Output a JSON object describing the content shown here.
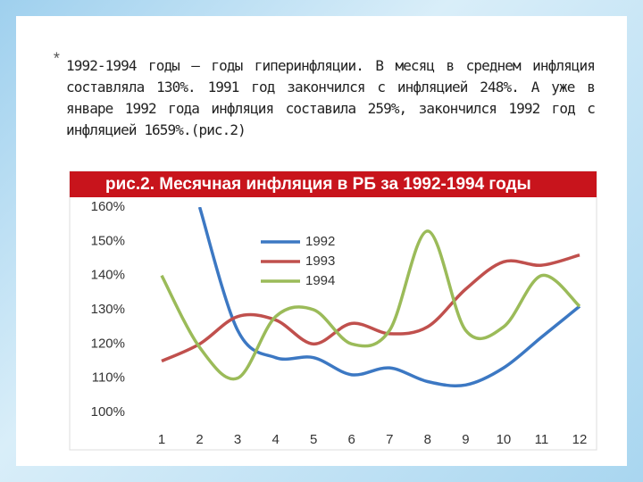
{
  "slide": {
    "bullet": "*",
    "text": "1992-1994 годы – годы гиперинфляции. В месяц в среднем инфляция составляла 130%. 1991 год закончился с инфляцией 248%. А уже в январе 1992 года инфляция составила 259%, закончился 1992 год с инфляцией 1659%.(рис.2)"
  },
  "chart_data": {
    "type": "line",
    "title": "рис.2. Месячная инфляция в РБ за 1992-1994 годы",
    "categories": [
      "1",
      "2",
      "3",
      "4",
      "5",
      "6",
      "7",
      "8",
      "9",
      "10",
      "11",
      "12"
    ],
    "series": [
      {
        "name": "1992",
        "color": "#3c78c3",
        "values": [
          null,
          160,
          124,
          116,
          116,
          111,
          113,
          109,
          108,
          113,
          122,
          131
        ]
      },
      {
        "name": "1993",
        "color": "#c0504d",
        "values": [
          115,
          120,
          128,
          127,
          120,
          126,
          123,
          125,
          136,
          144,
          143,
          146
        ]
      },
      {
        "name": "1994",
        "color": "#9bbb59",
        "values": [
          140,
          119,
          110,
          128,
          130,
          120,
          124,
          153,
          124,
          125,
          140,
          131
        ]
      }
    ],
    "ylim": [
      100,
      160
    ],
    "yticks": [
      {
        "value": 100,
        "label": "100%"
      },
      {
        "value": 110,
        "label": "110%"
      },
      {
        "value": 120,
        "label": "120%"
      },
      {
        "value": 130,
        "label": "130%"
      },
      {
        "value": 140,
        "label": "140%"
      },
      {
        "value": 150,
        "label": "150%"
      },
      {
        "value": 160,
        "label": "160%"
      }
    ],
    "grid": false,
    "legend": "top"
  }
}
